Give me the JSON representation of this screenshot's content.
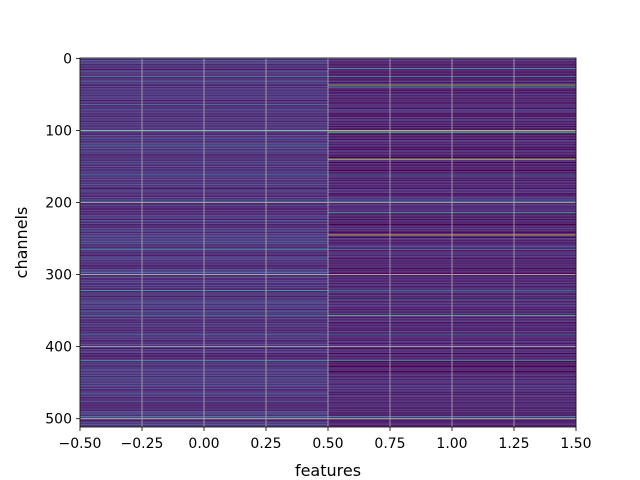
{
  "chart_data": {
    "type": "heatmap",
    "title": "",
    "xlabel": "features",
    "ylabel": "channels",
    "x_ticks": [
      "−0.50",
      "−0.25",
      "0.00",
      "0.25",
      "0.50",
      "0.75",
      "1.00",
      "1.25",
      "1.50"
    ],
    "x_tick_values": [
      -0.5,
      -0.25,
      0.0,
      0.25,
      0.5,
      0.75,
      1.0,
      1.25,
      1.5
    ],
    "y_ticks": [
      "0",
      "100",
      "200",
      "300",
      "400",
      "500"
    ],
    "y_tick_values": [
      0,
      100,
      200,
      300,
      400,
      500
    ],
    "xlim": [
      -0.5,
      1.5
    ],
    "ylim": [
      511.5,
      -0.5
    ],
    "y_inverted": true,
    "n_rows": 512,
    "columns": [
      0,
      1
    ],
    "grid": true,
    "colormap": "viridis",
    "colormap_stops": [
      "#440154",
      "#472c7a",
      "#3b518b",
      "#2c718e",
      "#21908d",
      "#27ad81",
      "#5cc863",
      "#aadc32",
      "#fde725"
    ],
    "base_value": {
      "feature_0": 0.12,
      "feature_1": 0.07
    },
    "highlight_rows": {
      "feature_0": [
        {
          "row": 25,
          "value": 0.5
        },
        {
          "row": 64,
          "value": 0.3
        },
        {
          "row": 101,
          "value": 0.45
        },
        {
          "row": 120,
          "value": 0.3
        },
        {
          "row": 163,
          "value": 0.35
        },
        {
          "row": 199,
          "value": 0.4
        },
        {
          "row": 265,
          "value": 0.45
        },
        {
          "row": 297,
          "value": 0.3
        },
        {
          "row": 322,
          "value": 0.55
        },
        {
          "row": 357,
          "value": 0.35
        },
        {
          "row": 419,
          "value": 0.55
        },
        {
          "row": 446,
          "value": 0.3
        },
        {
          "row": 497,
          "value": 0.4
        }
      ],
      "feature_1": [
        {
          "row": 14,
          "value": 0.5
        },
        {
          "row": 25,
          "value": 0.45
        },
        {
          "row": 37,
          "value": 0.85
        },
        {
          "row": 40,
          "value": 0.5
        },
        {
          "row": 101,
          "value": 0.8
        },
        {
          "row": 103,
          "value": 0.6
        },
        {
          "row": 140,
          "value": 0.88
        },
        {
          "row": 163,
          "value": 0.35
        },
        {
          "row": 199,
          "value": 0.5
        },
        {
          "row": 214,
          "value": 0.55
        },
        {
          "row": 245,
          "value": 0.95
        },
        {
          "row": 265,
          "value": 0.4
        },
        {
          "row": 323,
          "value": 0.4
        },
        {
          "row": 335,
          "value": 0.45
        },
        {
          "row": 357,
          "value": 0.7
        },
        {
          "row": 384,
          "value": 0.4
        },
        {
          "row": 419,
          "value": 0.6
        },
        {
          "row": 497,
          "value": 0.45
        }
      ]
    }
  }
}
